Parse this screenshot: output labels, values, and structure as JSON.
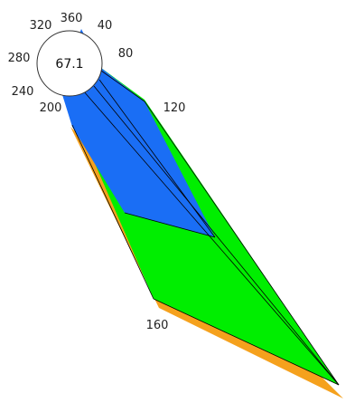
{
  "chart_data": {
    "type": "area",
    "description_kind": "polar-3d-layered",
    "center_value": "67.1",
    "angle_labels": [
      "360",
      "40",
      "80",
      "120",
      "160",
      "200",
      "240",
      "280",
      "320"
    ],
    "angle_axis_range": [
      0,
      360
    ],
    "layers": [
      {
        "color": "#f5a11d"
      },
      {
        "color": "#00ee00"
      },
      {
        "color": "#1a6ef5"
      }
    ],
    "grid": false,
    "legend": "none"
  }
}
